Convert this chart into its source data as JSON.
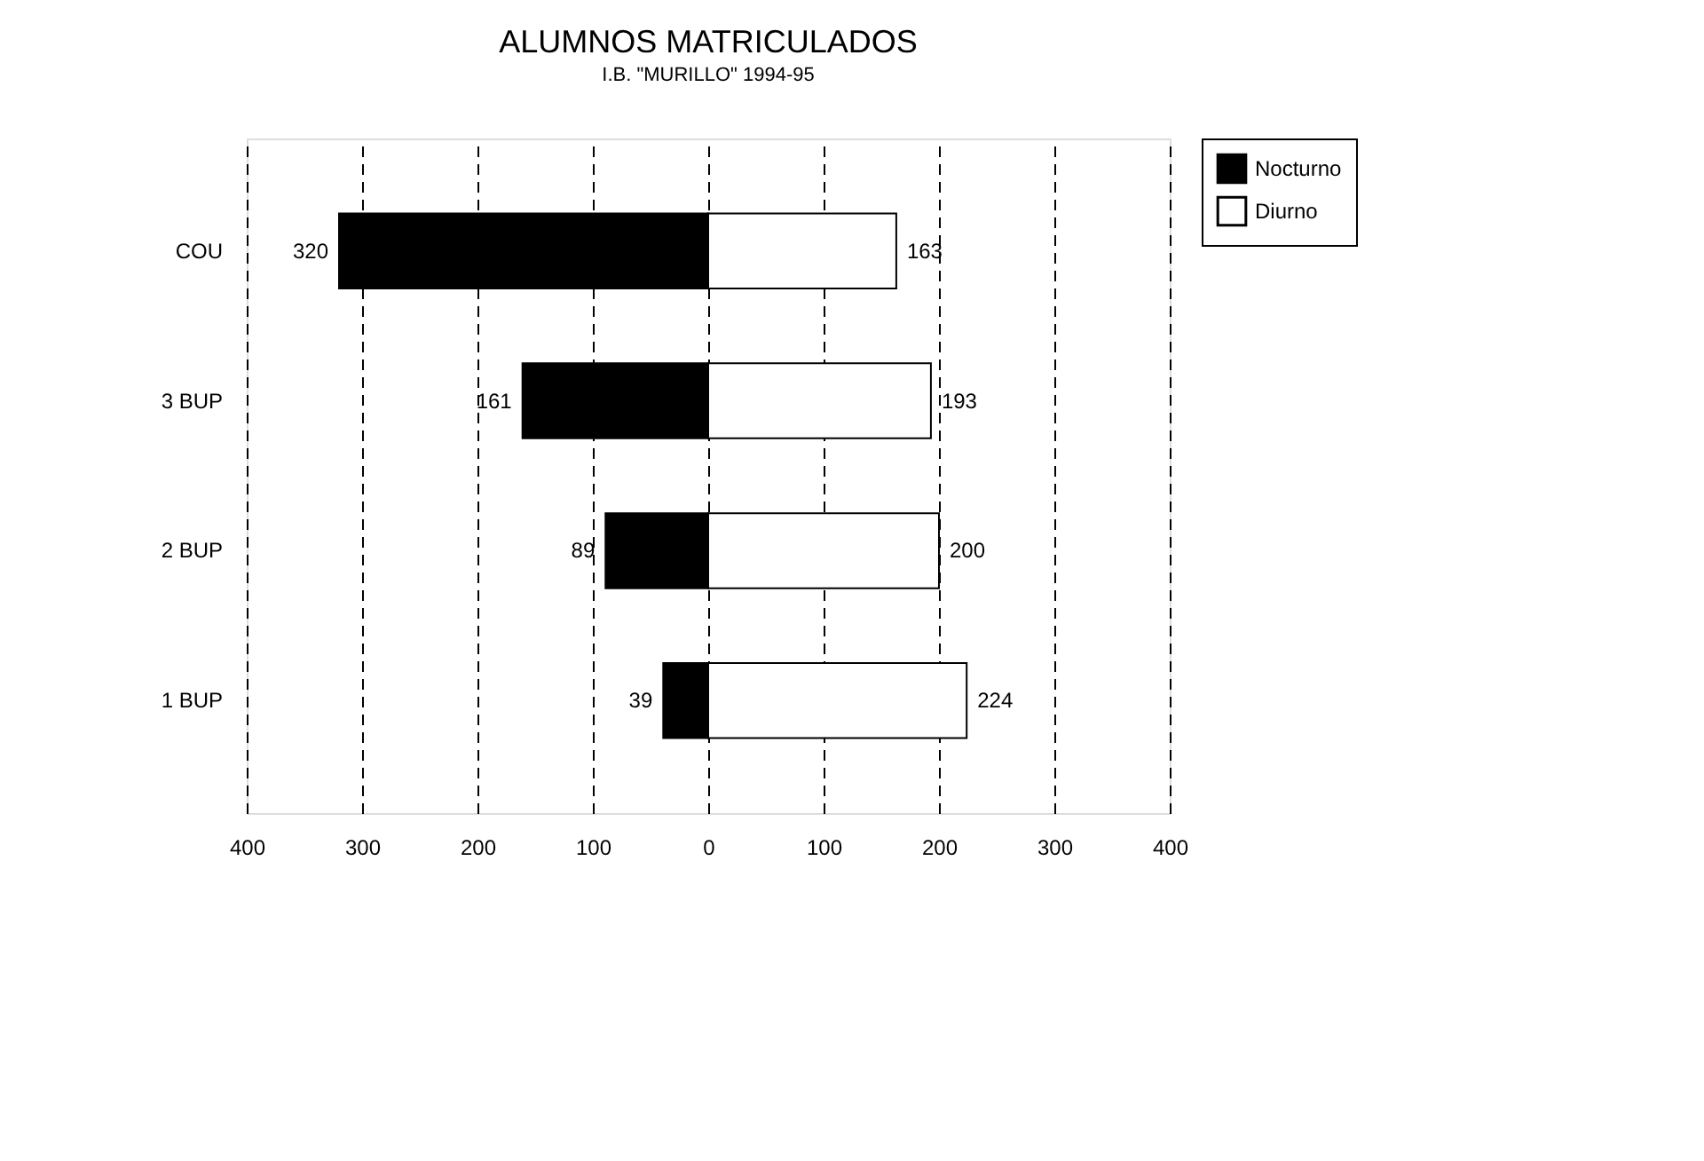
{
  "chart_data": {
    "type": "bar",
    "title": "ALUMNOS MATRICULADOS",
    "subtitle": "I.B. \"MURILLO\" 1994-95",
    "orientation": "horizontal",
    "categories": [
      "COU",
      "3 BUP",
      "2 BUP",
      "1 BUP"
    ],
    "series": [
      {
        "name": "Nocturno",
        "color": "#000000",
        "values": [
          320,
          161,
          89,
          39
        ],
        "base": [
          -320,
          -161,
          -89,
          -39
        ],
        "value_labels": [
          "320",
          "161",
          "89",
          "39"
        ]
      },
      {
        "name": "Diurno",
        "color": "#ffffff",
        "values": [
          163,
          193,
          200,
          224
        ],
        "value_labels": [
          "163",
          "193",
          "200",
          "224"
        ]
      }
    ],
    "xlim": [
      -400,
      400
    ],
    "xticks": [
      {
        "value": -400,
        "label": "400"
      },
      {
        "value": -300,
        "label": "300"
      },
      {
        "value": -200,
        "label": "200"
      },
      {
        "value": -100,
        "label": "100"
      },
      0,
      100,
      200,
      300,
      400
    ],
    "grid": "x",
    "legend": "right"
  }
}
